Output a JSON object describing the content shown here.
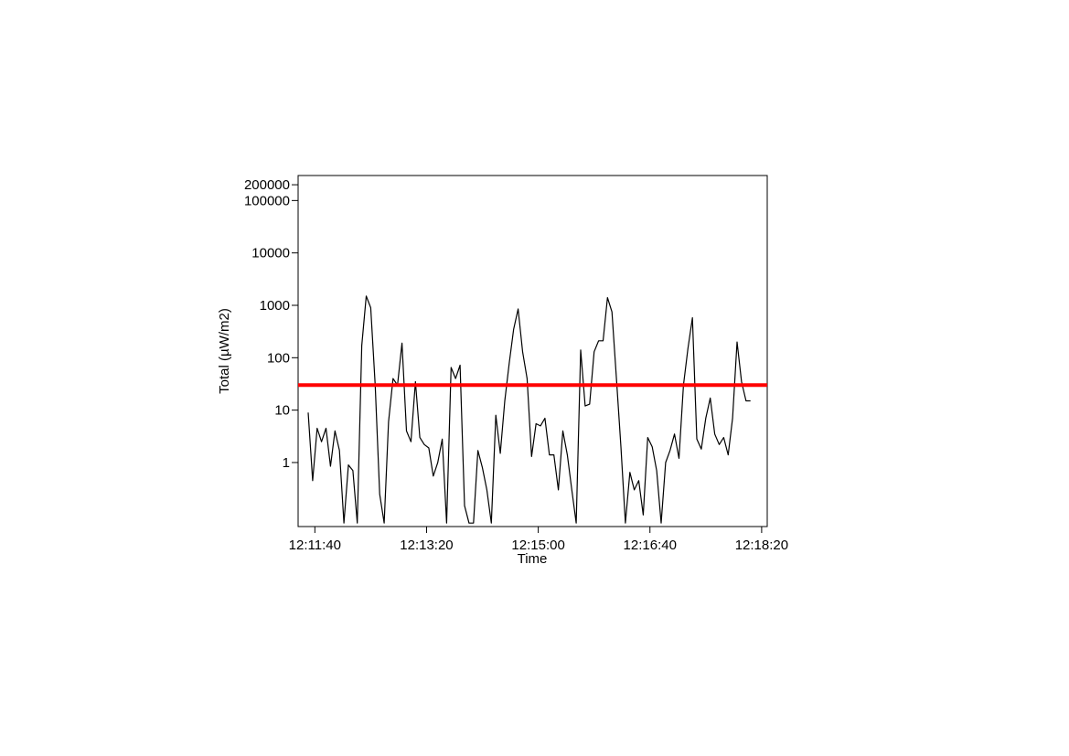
{
  "chart_data": {
    "type": "line",
    "title": "",
    "xlabel": "Time",
    "ylabel": "Total (µW/m2)",
    "y_scale": "log",
    "ylim": [
      0.06,
      300000
    ],
    "xlim": [
      "12:11:25",
      "12:18:25"
    ],
    "x_ticks": [
      "12:11:40",
      "12:13:20",
      "12:15:00",
      "12:16:40",
      "12:18:20"
    ],
    "y_ticks": [
      {
        "value": 200000,
        "label": "200000"
      },
      {
        "value": 100000,
        "label": "100000"
      },
      {
        "value": 10000,
        "label": "10000"
      },
      {
        "value": 1000,
        "label": "1000"
      },
      {
        "value": 100,
        "label": "100"
      },
      {
        "value": 10,
        "label": "10"
      },
      {
        "value": 1,
        "label": "1"
      }
    ],
    "grid": false,
    "reference_line": {
      "value": 30,
      "color": "#ff0000"
    },
    "series": [
      {
        "color": "#000000",
        "x": [
          "12:11:34",
          "12:11:38",
          "12:11:42",
          "12:11:46",
          "12:11:50",
          "12:11:54",
          "12:11:58",
          "12:12:02",
          "12:12:06",
          "12:12:10",
          "12:12:14",
          "12:12:18",
          "12:12:22",
          "12:12:26",
          "12:12:30",
          "12:12:34",
          "12:12:38",
          "12:12:42",
          "12:12:46",
          "12:12:50",
          "12:12:54",
          "12:12:58",
          "12:13:02",
          "12:13:06",
          "12:13:10",
          "12:13:14",
          "12:13:18",
          "12:13:22",
          "12:13:26",
          "12:13:30",
          "12:13:34",
          "12:13:38",
          "12:13:42",
          "12:13:46",
          "12:13:50",
          "12:13:54",
          "12:13:58",
          "12:14:02",
          "12:14:06",
          "12:14:10",
          "12:14:14",
          "12:14:18",
          "12:14:22",
          "12:14:26",
          "12:14:30",
          "12:14:34",
          "12:14:38",
          "12:14:42",
          "12:14:46",
          "12:14:50",
          "12:14:54",
          "12:14:58",
          "12:15:02",
          "12:15:06",
          "12:15:10",
          "12:15:14",
          "12:15:18",
          "12:15:22",
          "12:15:26",
          "12:15:30",
          "12:15:34",
          "12:15:38",
          "12:15:42",
          "12:15:46",
          "12:15:50",
          "12:15:54",
          "12:15:58",
          "12:16:02",
          "12:16:06",
          "12:16:10",
          "12:16:14",
          "12:16:18",
          "12:16:22",
          "12:16:26",
          "12:16:30",
          "12:16:34",
          "12:16:38",
          "12:16:42",
          "12:16:46",
          "12:16:50",
          "12:16:54",
          "12:16:58",
          "12:17:02",
          "12:17:06",
          "12:17:10",
          "12:17:14",
          "12:17:18",
          "12:17:22",
          "12:17:26",
          "12:17:30",
          "12:17:34",
          "12:17:38",
          "12:17:42",
          "12:17:46",
          "12:17:50",
          "12:17:54",
          "12:17:58",
          "12:18:02",
          "12:18:06",
          "12:18:10"
        ],
        "y": [
          9,
          0.45,
          4.5,
          2.5,
          4.5,
          0.85,
          4,
          1.7,
          0.07,
          0.9,
          0.7,
          0.07,
          170,
          1500,
          900,
          30,
          0.25,
          0.07,
          6,
          40,
          30,
          190,
          4,
          2.5,
          35,
          3,
          2.2,
          1.9,
          0.55,
          1,
          2.8,
          0.07,
          65,
          40,
          72,
          0.15,
          0.07,
          0.07,
          1.7,
          0.8,
          0.3,
          0.07,
          8,
          1.5,
          15,
          80,
          350,
          850,
          130,
          40,
          1.3,
          5.5,
          5,
          7,
          1.4,
          1.4,
          0.3,
          4,
          1.4,
          0.3,
          0.07,
          140,
          12,
          13,
          130,
          210,
          210,
          1400,
          750,
          40,
          2,
          0.07,
          0.65,
          0.3,
          0.45,
          0.1,
          3,
          2,
          0.7,
          0.07,
          1,
          1.7,
          3.5,
          1.2,
          30,
          150,
          580,
          2.8,
          1.8,
          7,
          17,
          3.5,
          2.2,
          3,
          1.4,
          7,
          200,
          35,
          15,
          15
        ]
      }
    ]
  }
}
